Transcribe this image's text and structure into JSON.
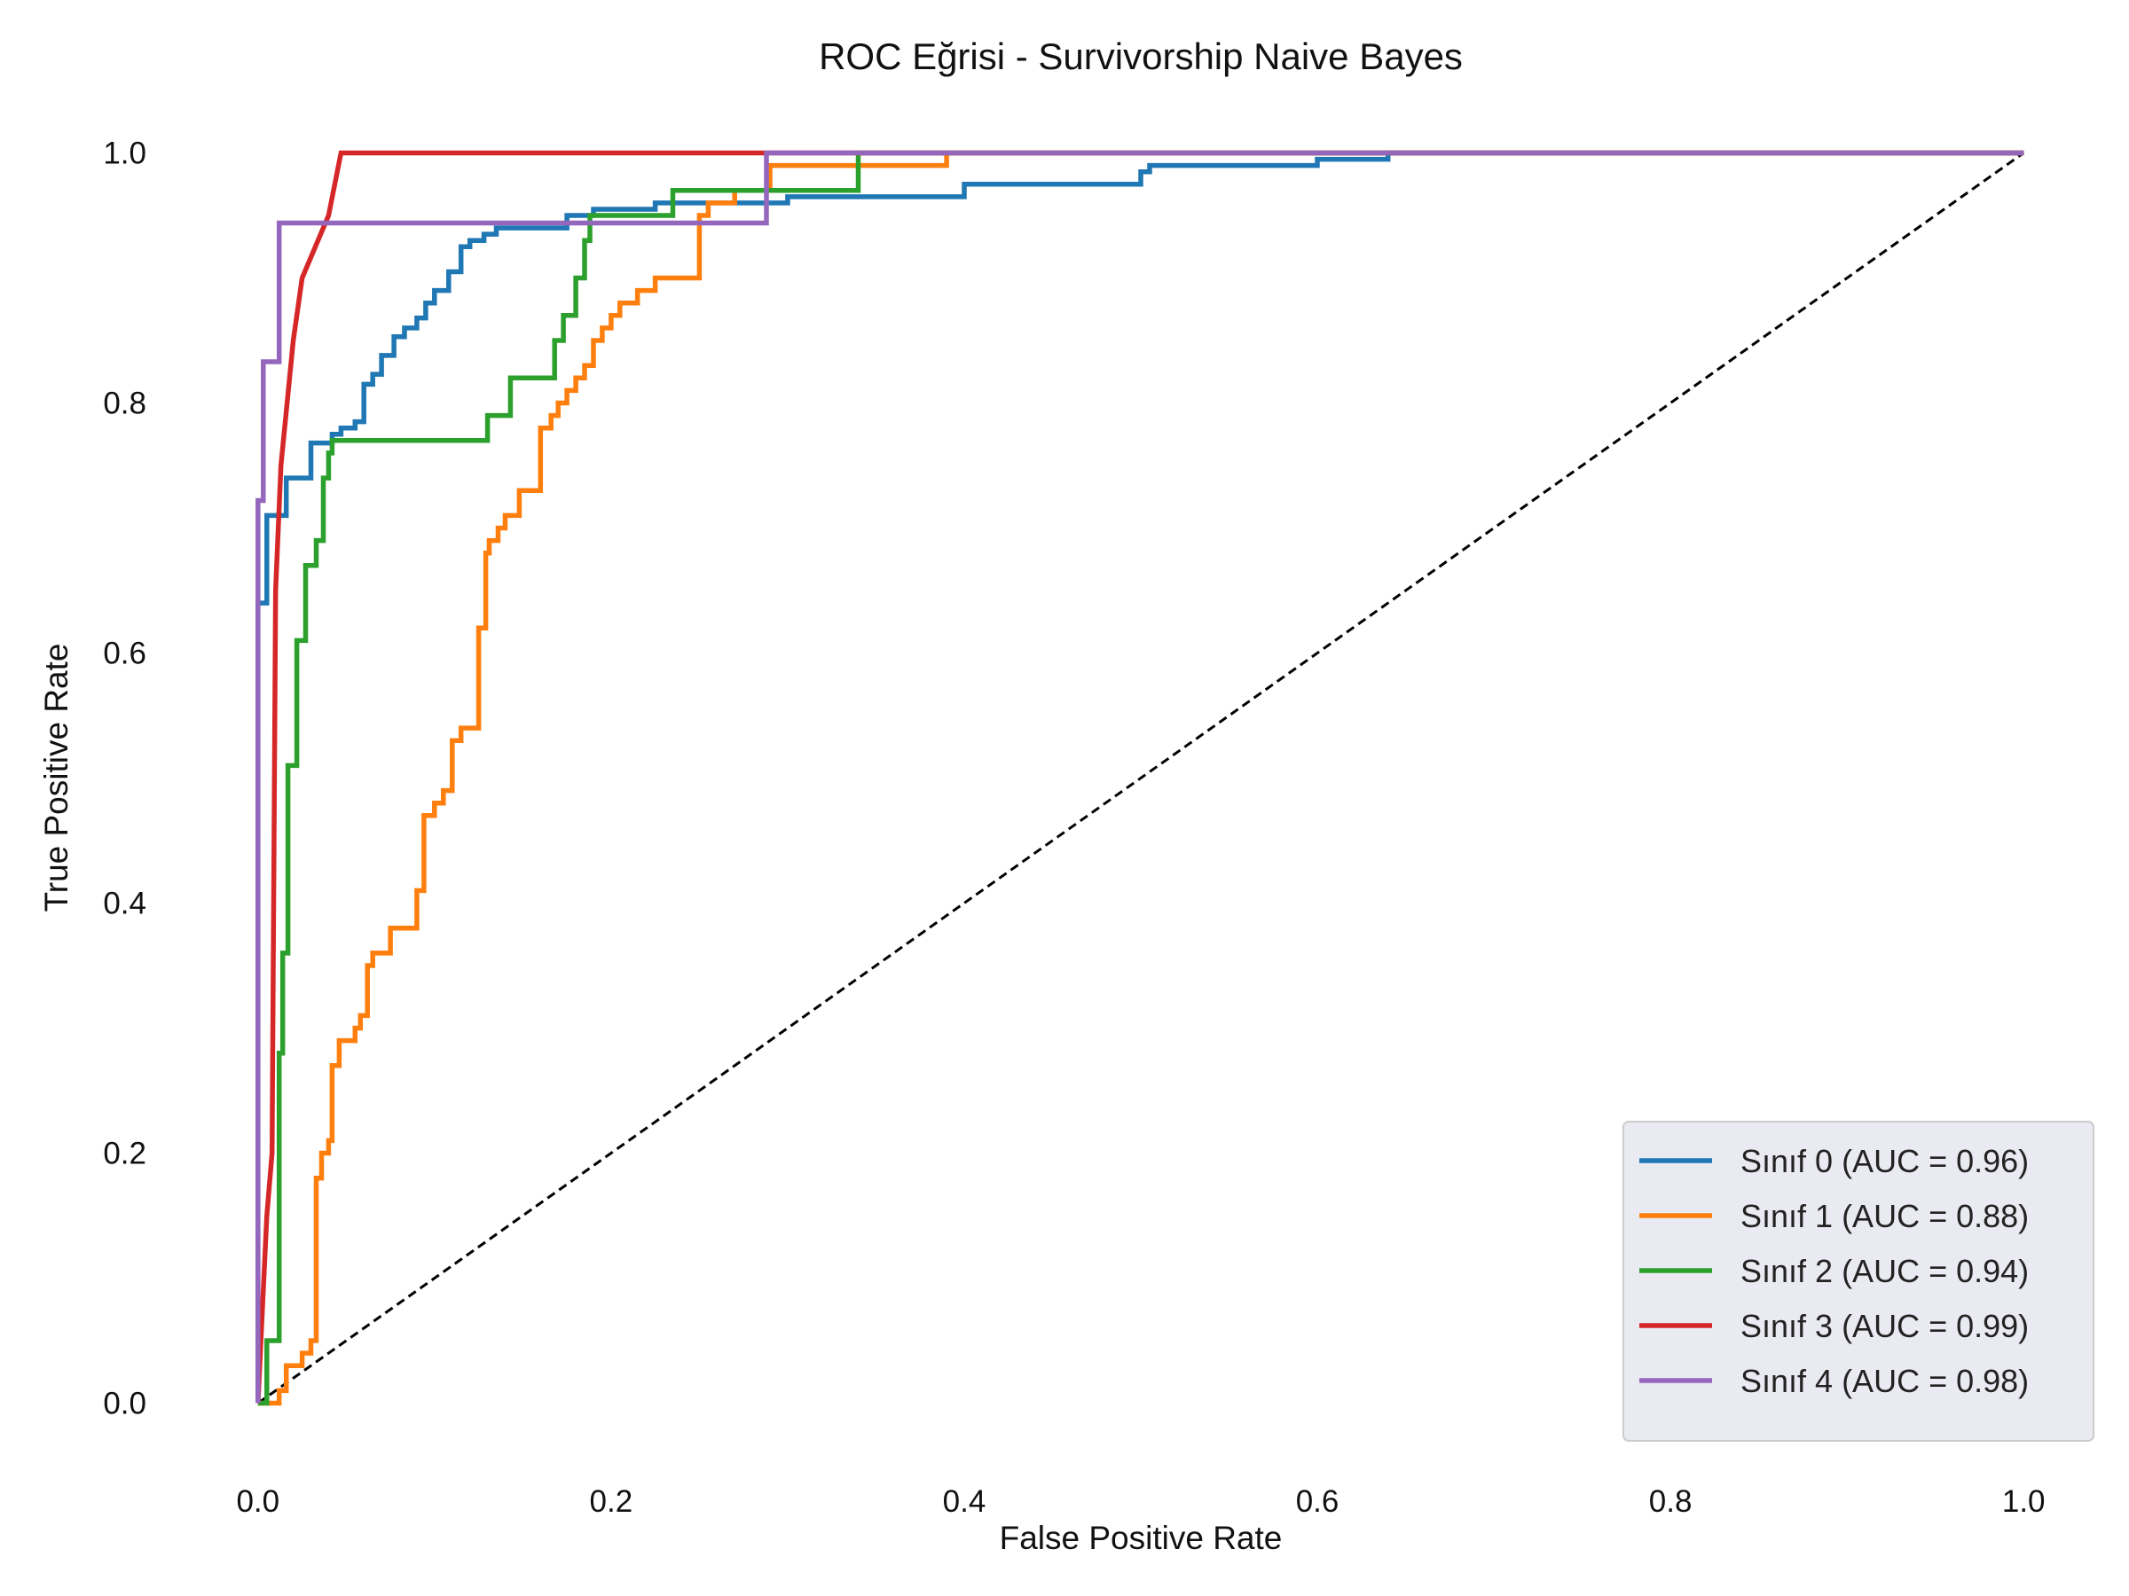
{
  "chart_data": {
    "type": "line",
    "title": "ROC Eğrisi - Survivorship Naive Bayes",
    "xlabel": "False Positive Rate",
    "ylabel": "True Positive Rate",
    "xlim": [
      -0.02,
      1.02
    ],
    "ylim": [
      -0.05,
      1.05
    ],
    "xticks": [
      "0.0",
      "0.2",
      "0.4",
      "0.6",
      "0.8",
      "1.0"
    ],
    "yticks": [
      "0.0",
      "0.2",
      "0.4",
      "0.6",
      "0.8",
      "1.0"
    ],
    "grid": false,
    "legend_position": "lower right",
    "diagonal": {
      "x": [
        0,
        1
      ],
      "y": [
        0,
        1
      ],
      "color": "#000000",
      "style": "dashed"
    },
    "series": [
      {
        "name": "Sınıf 0 (AUC = 0.96)",
        "color": "#1f77b4",
        "x": [
          0,
          0,
          0.005,
          0.005,
          0.016,
          0.016,
          0.03,
          0.03,
          0.042,
          0.042,
          0.047,
          0.047,
          0.055,
          0.055,
          0.06,
          0.06,
          0.065,
          0.065,
          0.07,
          0.07,
          0.077,
          0.077,
          0.083,
          0.083,
          0.09,
          0.09,
          0.095,
          0.095,
          0.1,
          0.1,
          0.108,
          0.108,
          0.115,
          0.115,
          0.12,
          0.12,
          0.128,
          0.128,
          0.135,
          0.135,
          0.175,
          0.175,
          0.19,
          0.19,
          0.225,
          0.225,
          0.3,
          0.3,
          0.4,
          0.4,
          0.5,
          0.5,
          0.505,
          0.505,
          0.6,
          0.6,
          0.64,
          0.64,
          1
        ],
        "y": [
          0,
          0.64,
          0.64,
          0.71,
          0.71,
          0.74,
          0.74,
          0.768,
          0.768,
          0.775,
          0.775,
          0.78,
          0.78,
          0.785,
          0.785,
          0.815,
          0.815,
          0.823,
          0.823,
          0.838,
          0.838,
          0.853,
          0.853,
          0.86,
          0.86,
          0.868,
          0.868,
          0.88,
          0.88,
          0.89,
          0.89,
          0.905,
          0.905,
          0.925,
          0.925,
          0.93,
          0.93,
          0.935,
          0.935,
          0.94,
          0.94,
          0.95,
          0.95,
          0.955,
          0.955,
          0.96,
          0.96,
          0.965,
          0.965,
          0.975,
          0.975,
          0.985,
          0.985,
          0.99,
          0.99,
          0.995,
          0.995,
          1,
          1
        ]
      },
      {
        "name": "Sınıf 1 (AUC = 0.88)",
        "color": "#ff7f0e",
        "x": [
          0,
          0.012,
          0.012,
          0.016,
          0.016,
          0.025,
          0.025,
          0.03,
          0.03,
          0.033,
          0.033,
          0.036,
          0.036,
          0.04,
          0.04,
          0.042,
          0.042,
          0.046,
          0.046,
          0.055,
          0.055,
          0.058,
          0.058,
          0.062,
          0.062,
          0.065,
          0.065,
          0.075,
          0.075,
          0.09,
          0.09,
          0.094,
          0.094,
          0.1,
          0.1,
          0.105,
          0.105,
          0.11,
          0.11,
          0.115,
          0.115,
          0.125,
          0.125,
          0.129,
          0.129,
          0.131,
          0.131,
          0.136,
          0.136,
          0.14,
          0.14,
          0.148,
          0.148,
          0.16,
          0.16,
          0.166,
          0.166,
          0.17,
          0.17,
          0.175,
          0.175,
          0.18,
          0.18,
          0.185,
          0.185,
          0.19,
          0.19,
          0.195,
          0.195,
          0.2,
          0.2,
          0.205,
          0.205,
          0.215,
          0.215,
          0.225,
          0.225,
          0.25,
          0.25,
          0.255,
          0.255,
          0.27,
          0.27,
          0.29,
          0.29,
          0.39,
          0.39,
          1
        ],
        "y": [
          0,
          0,
          0.01,
          0.01,
          0.03,
          0.03,
          0.04,
          0.04,
          0.05,
          0.05,
          0.18,
          0.18,
          0.2,
          0.2,
          0.21,
          0.21,
          0.27,
          0.27,
          0.29,
          0.29,
          0.3,
          0.3,
          0.31,
          0.31,
          0.35,
          0.35,
          0.36,
          0.36,
          0.38,
          0.38,
          0.41,
          0.41,
          0.47,
          0.47,
          0.48,
          0.48,
          0.49,
          0.49,
          0.53,
          0.53,
          0.54,
          0.54,
          0.62,
          0.62,
          0.68,
          0.68,
          0.69,
          0.69,
          0.7,
          0.7,
          0.71,
          0.71,
          0.73,
          0.73,
          0.78,
          0.78,
          0.79,
          0.79,
          0.8,
          0.8,
          0.81,
          0.81,
          0.82,
          0.82,
          0.83,
          0.83,
          0.85,
          0.85,
          0.86,
          0.86,
          0.87,
          0.87,
          0.88,
          0.88,
          0.89,
          0.89,
          0.9,
          0.9,
          0.95,
          0.95,
          0.96,
          0.96,
          0.97,
          0.97,
          0.99,
          0.99,
          1,
          1
        ]
      },
      {
        "name": "Sınıf 2 (AUC = 0.94)",
        "color": "#2ca02c",
        "x": [
          0,
          0.005,
          0.005,
          0.012,
          0.012,
          0.014,
          0.014,
          0.017,
          0.017,
          0.022,
          0.022,
          0.027,
          0.027,
          0.033,
          0.033,
          0.037,
          0.037,
          0.04,
          0.04,
          0.042,
          0.042,
          0.13,
          0.13,
          0.143,
          0.143,
          0.168,
          0.168,
          0.173,
          0.173,
          0.18,
          0.18,
          0.185,
          0.185,
          0.188,
          0.188,
          0.235,
          0.235,
          0.34,
          0.34,
          1
        ],
        "y": [
          0,
          0,
          0.05,
          0.05,
          0.28,
          0.28,
          0.36,
          0.36,
          0.51,
          0.51,
          0.61,
          0.61,
          0.67,
          0.67,
          0.69,
          0.69,
          0.74,
          0.74,
          0.76,
          0.76,
          0.77,
          0.77,
          0.79,
          0.79,
          0.82,
          0.82,
          0.85,
          0.85,
          0.87,
          0.87,
          0.9,
          0.9,
          0.93,
          0.93,
          0.95,
          0.95,
          0.97,
          0.97,
          1,
          1
        ]
      },
      {
        "name": "Sınıf 3 (AUC = 0.99)",
        "color": "#d62728",
        "x": [
          0,
          0.005,
          0.005,
          0.008,
          0.008,
          0.01,
          0.01,
          0.013,
          0.013,
          0.02,
          0.02,
          0.025,
          0.025,
          0.04,
          0.04,
          0.047,
          0.047,
          1
        ],
        "y": [
          0,
          0.15,
          0.15,
          0.2,
          0.2,
          0.65,
          0.65,
          0.75,
          0.75,
          0.85,
          0.85,
          0.9,
          0.9,
          0.95,
          0.95,
          1,
          1,
          1
        ]
      },
      {
        "name": "Sınıf 4 (AUC = 0.98)",
        "color": "#9467bd",
        "x": [
          0,
          0,
          0.003,
          0.003,
          0.012,
          0.012,
          0.288,
          0.288,
          1
        ],
        "y": [
          0,
          0.722,
          0.722,
          0.833,
          0.833,
          0.944,
          0.944,
          1,
          1
        ]
      }
    ]
  }
}
